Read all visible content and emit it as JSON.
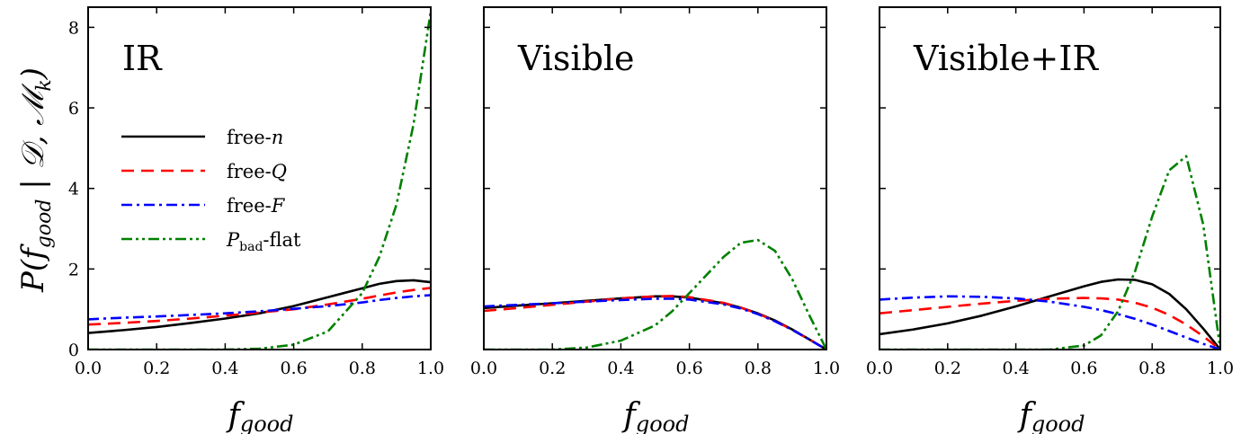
{
  "colors": {
    "free_n": "#000000",
    "free_Q": "#ff0000",
    "free_F": "#0000ff",
    "Pbad_flat": "#008000"
  },
  "axes_text": {
    "ylabel_main": "P(f",
    "ylabel_sub": "good",
    "ylabel_rest": " | 𝒟, ℳ",
    "ylabel_k": "k",
    "ylabel_close": ")",
    "xlabel_main": "f",
    "xlabel_sub": "good"
  },
  "legend": {
    "free_n": {
      "prefix": "free-",
      "var": "n"
    },
    "free_Q": {
      "prefix": "free-",
      "var": "Q"
    },
    "free_F": {
      "prefix": "free-",
      "var": "F"
    },
    "Pbad_flat": {
      "var": "P",
      "sub": "bad",
      "suffix": "-flat"
    }
  },
  "chart_data": [
    {
      "type": "line",
      "title": "IR",
      "xlim": [
        0,
        1
      ],
      "ylim": [
        0,
        8.5
      ],
      "xticks": [
        0.0,
        0.2,
        0.4,
        0.6,
        0.8,
        1.0
      ],
      "xtick_labels": [
        "0.0",
        "0.2",
        "0.4",
        "0.6",
        "0.8",
        "1.0"
      ],
      "yticks": [
        0,
        2,
        4,
        6,
        8
      ],
      "ytick_labels": [
        "0",
        "2",
        "4",
        "6",
        "8"
      ],
      "grid": false,
      "legend_position": "center-left",
      "x": [
        0.0,
        0.1,
        0.2,
        0.3,
        0.4,
        0.5,
        0.6,
        0.7,
        0.8,
        0.85,
        0.9,
        0.95,
        1.0
      ],
      "series": [
        {
          "key": "free_n",
          "values": [
            0.41,
            0.48,
            0.56,
            0.66,
            0.77,
            0.9,
            1.08,
            1.3,
            1.52,
            1.63,
            1.7,
            1.72,
            1.67
          ]
        },
        {
          "key": "free_Q",
          "values": [
            0.62,
            0.66,
            0.71,
            0.77,
            0.84,
            0.92,
            1.0,
            1.12,
            1.26,
            1.34,
            1.42,
            1.48,
            1.53
          ]
        },
        {
          "key": "free_F",
          "values": [
            0.75,
            0.79,
            0.82,
            0.86,
            0.9,
            0.95,
            1.01,
            1.08,
            1.17,
            1.23,
            1.28,
            1.32,
            1.35
          ]
        },
        {
          "key": "Pbad_flat",
          "values": [
            0.0,
            0.0,
            0.0,
            0.0,
            0.0,
            0.02,
            0.12,
            0.45,
            1.4,
            2.3,
            3.6,
            5.6,
            8.4
          ]
        }
      ]
    },
    {
      "type": "line",
      "title": "Visible",
      "xlim": [
        0,
        1
      ],
      "ylim": [
        0,
        8.5
      ],
      "xticks": [
        0.0,
        0.2,
        0.4,
        0.6,
        0.8,
        1.0
      ],
      "xtick_labels": [
        "0.0",
        "0.2",
        "0.4",
        "0.6",
        "0.8",
        "1.0"
      ],
      "yticks": [
        0,
        2,
        4,
        6,
        8
      ],
      "grid": false,
      "x": [
        0.0,
        0.1,
        0.2,
        0.3,
        0.4,
        0.5,
        0.55,
        0.6,
        0.7,
        0.75,
        0.8,
        0.85,
        0.9,
        0.95,
        1.0
      ],
      "series": [
        {
          "key": "free_n",
          "values": [
            1.03,
            1.09,
            1.15,
            1.21,
            1.27,
            1.32,
            1.32,
            1.29,
            1.15,
            1.04,
            0.9,
            0.72,
            0.5,
            0.25,
            0.0
          ]
        },
        {
          "key": "free_Q",
          "values": [
            0.96,
            1.03,
            1.11,
            1.19,
            1.27,
            1.32,
            1.33,
            1.3,
            1.16,
            1.04,
            0.89,
            0.71,
            0.49,
            0.25,
            0.0
          ]
        },
        {
          "key": "free_F",
          "values": [
            1.07,
            1.11,
            1.15,
            1.19,
            1.23,
            1.26,
            1.26,
            1.24,
            1.12,
            1.02,
            0.88,
            0.7,
            0.49,
            0.25,
            0.0
          ]
        },
        {
          "key": "Pbad_flat",
          "values": [
            0.0,
            0.0,
            0.0,
            0.05,
            0.22,
            0.6,
            0.95,
            1.4,
            2.3,
            2.65,
            2.72,
            2.45,
            1.75,
            0.85,
            0.0
          ]
        }
      ]
    },
    {
      "type": "line",
      "title": "Visible+IR",
      "xlim": [
        0,
        1
      ],
      "ylim": [
        0,
        8.5
      ],
      "xticks": [
        0.0,
        0.2,
        0.4,
        0.6,
        0.8,
        1.0
      ],
      "xtick_labels": [
        "0.0",
        "0.2",
        "0.4",
        "0.6",
        "0.8",
        "1.0"
      ],
      "yticks": [
        0,
        2,
        4,
        6,
        8
      ],
      "grid": false,
      "x": [
        0.0,
        0.1,
        0.2,
        0.3,
        0.4,
        0.5,
        0.6,
        0.65,
        0.7,
        0.75,
        0.8,
        0.85,
        0.9,
        0.95,
        1.0
      ],
      "series": [
        {
          "key": "free_n",
          "values": [
            0.38,
            0.5,
            0.65,
            0.84,
            1.07,
            1.32,
            1.57,
            1.68,
            1.74,
            1.73,
            1.62,
            1.38,
            1.0,
            0.52,
            0.0
          ]
        },
        {
          "key": "free_Q",
          "values": [
            0.9,
            0.98,
            1.06,
            1.14,
            1.21,
            1.26,
            1.28,
            1.27,
            1.24,
            1.16,
            1.04,
            0.86,
            0.62,
            0.33,
            0.0
          ]
        },
        {
          "key": "free_F",
          "values": [
            1.24,
            1.29,
            1.32,
            1.31,
            1.27,
            1.19,
            1.06,
            0.98,
            0.88,
            0.76,
            0.62,
            0.46,
            0.3,
            0.14,
            0.0
          ]
        },
        {
          "key": "Pbad_flat",
          "values": [
            0.0,
            0.0,
            0.0,
            0.0,
            0.0,
            0.0,
            0.1,
            0.35,
            0.95,
            1.95,
            3.3,
            4.45,
            4.8,
            3.1,
            0.0
          ]
        }
      ]
    }
  ]
}
